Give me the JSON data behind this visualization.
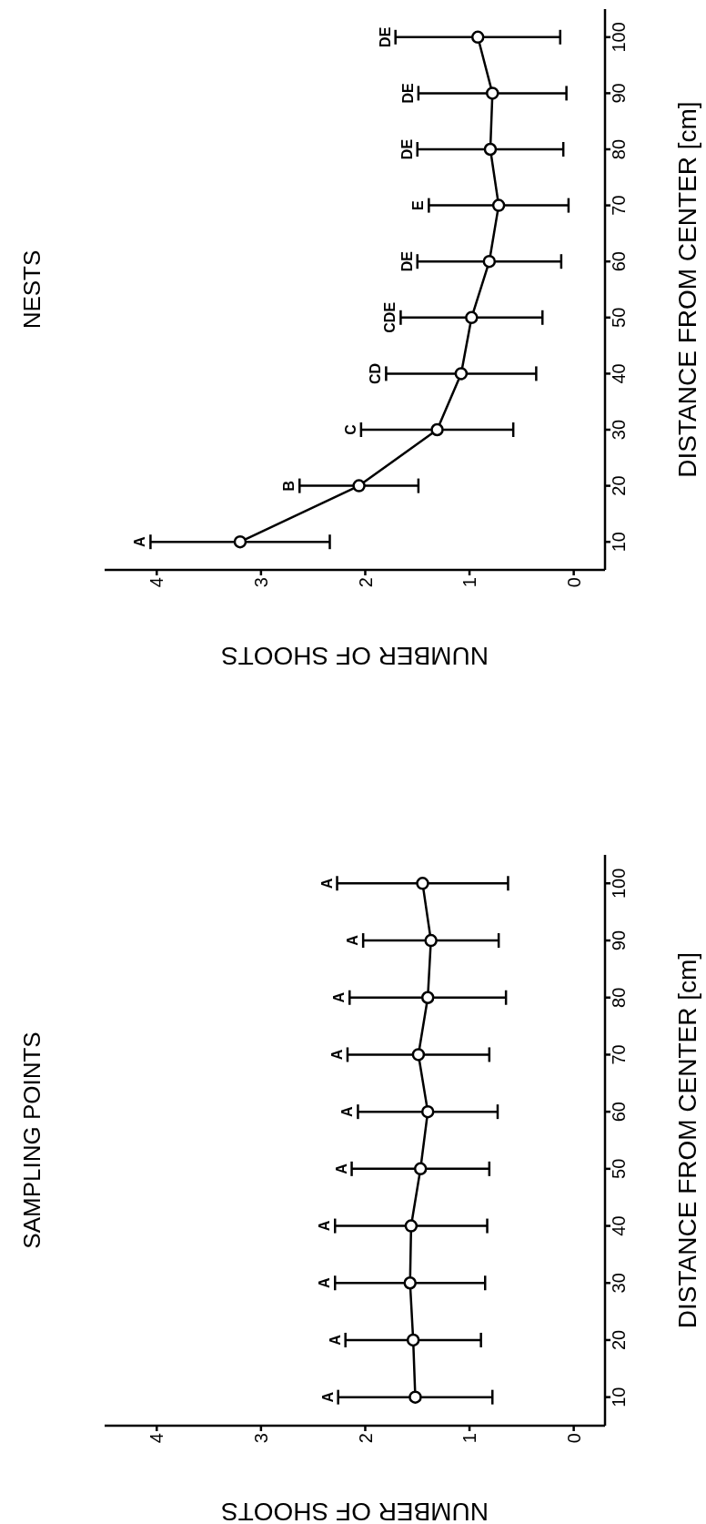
{
  "chart_data": [
    {
      "type": "line",
      "title": "SAMPLING POINTS",
      "xlabel": "NUMBER OF SHOOTS",
      "ylabel": "DISTANCE FROM CENTER [cm]",
      "series": [
        {
          "color": "#000000",
          "x": [
            1.52,
            1.54,
            1.57,
            1.56,
            1.47,
            1.4,
            1.49,
            1.4,
            1.37,
            1.45
          ],
          "values": [
            10,
            20,
            30,
            40,
            50,
            60,
            70,
            80,
            90,
            100
          ],
          "xerrors": [
            0.74,
            0.65,
            0.72,
            0.73,
            0.66,
            0.67,
            0.68,
            0.75,
            0.65,
            0.82
          ]
        }
      ],
      "xlim": [
        4.5,
        -0.3
      ],
      "ylim": [
        5,
        105
      ],
      "xticks": [
        4,
        3,
        2,
        1,
        0
      ],
      "yticks": [
        10,
        20,
        30,
        40,
        50,
        60,
        70,
        80,
        90,
        100
      ],
      "marker": "circle",
      "annotations": [
        {
          "text": "A",
          "x": 2.26,
          "y": 10
        },
        {
          "text": "A",
          "x": 2.19,
          "y": 20
        },
        {
          "text": "A",
          "x": 2.29,
          "y": 30
        },
        {
          "text": "A",
          "x": 2.29,
          "y": 40
        },
        {
          "text": "A",
          "x": 2.13,
          "y": 50
        },
        {
          "text": "A",
          "x": 2.07,
          "y": 60
        },
        {
          "text": "A",
          "x": 2.17,
          "y": 70
        },
        {
          "text": "A",
          "x": 2.15,
          "y": 80
        },
        {
          "text": "A",
          "x": 2.02,
          "y": 90
        },
        {
          "text": "A",
          "x": 2.27,
          "y": 100
        }
      ]
    },
    {
      "type": "line",
      "title": "NESTS",
      "xlabel": "NUMBER OF SHOOTS",
      "ylabel": "DISTANCE FROM CENTER [cm]",
      "series": [
        {
          "color": "#000000",
          "x": [
            3.2,
            2.06,
            1.31,
            1.08,
            0.98,
            0.81,
            0.72,
            0.8,
            0.78,
            0.92
          ],
          "values": [
            10,
            20,
            30,
            40,
            50,
            60,
            70,
            80,
            90,
            100
          ],
          "xerrors": [
            0.86,
            0.57,
            0.73,
            0.72,
            0.68,
            0.69,
            0.67,
            0.7,
            0.71,
            0.79
          ]
        }
      ],
      "xlim": [
        4.5,
        -0.3
      ],
      "ylim": [
        5,
        105
      ],
      "xticks": [
        4,
        3,
        2,
        1,
        0
      ],
      "yticks": [
        10,
        20,
        30,
        40,
        50,
        60,
        70,
        80,
        90,
        100
      ],
      "marker": "circle",
      "annotations": [
        {
          "text": "A",
          "x": 4.06,
          "y": 10
        },
        {
          "text": "B",
          "x": 2.63,
          "y": 20
        },
        {
          "text": "C",
          "x": 2.04,
          "y": 30
        },
        {
          "text": "CD",
          "x": 1.8,
          "y": 40
        },
        {
          "text": "CDE",
          "x": 1.66,
          "y": 50
        },
        {
          "text": "DE",
          "x": 1.5,
          "y": 60
        },
        {
          "text": "E",
          "x": 1.39,
          "y": 70
        },
        {
          "text": "DE",
          "x": 1.5,
          "y": 80
        },
        {
          "text": "DE",
          "x": 1.49,
          "y": 90
        },
        {
          "text": "DE",
          "x": 1.71,
          "y": 100
        }
      ]
    }
  ]
}
